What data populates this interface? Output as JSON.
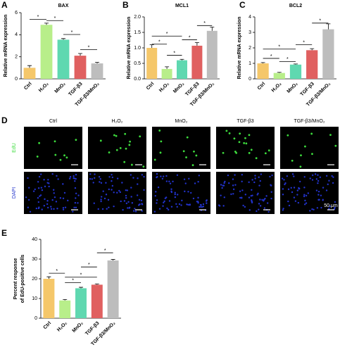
{
  "chart_data": [
    {
      "type": "bar",
      "label": "A",
      "title": "BAX",
      "ylabel": "Relative mRNA expression",
      "categories": [
        "Ctrl",
        "H₂O₂",
        "MnO₂",
        "TGF-β3",
        "TGF-β3/MnO₂"
      ],
      "values": [
        1.0,
        4.9,
        3.55,
        2.1,
        1.4
      ],
      "errors": [
        0.2,
        0.15,
        0.1,
        0.2,
        0.1
      ],
      "colors": [
        "#f5c76a",
        "#b8ee8a",
        "#5fd8b0",
        "#e06060",
        "#bdbdbd"
      ],
      "ylim": [
        0,
        6
      ],
      "yticks": [
        0,
        2,
        4,
        6
      ],
      "annotations": [
        "*",
        "*",
        "*",
        "*"
      ]
    },
    {
      "type": "bar",
      "label": "B",
      "title": "MCL1",
      "ylabel": "Relative mRNA expression",
      "categories": [
        "Ctrl",
        "H₂O₂",
        "MnO₂",
        "TGF-β3",
        "TGF-β3/MnO₂"
      ],
      "values": [
        1.0,
        0.32,
        0.6,
        1.07,
        1.55
      ],
      "errors": [
        0.1,
        0.07,
        0.03,
        0.1,
        0.12
      ],
      "colors": [
        "#f5c76a",
        "#b8ee8a",
        "#5fd8b0",
        "#e06060",
        "#bdbdbd"
      ],
      "ylim": [
        0,
        2
      ],
      "yticks": [
        {
          "value": 0,
          "label": "0.0"
        },
        0.5,
        {
          "value": 1,
          "label": "1.0"
        },
        1.5,
        {
          "value": 2,
          "label": "2.0"
        }
      ],
      "annotations": [
        "*",
        "*",
        "*",
        "*",
        "*"
      ]
    },
    {
      "type": "bar",
      "label": "C",
      "title": "BCL2",
      "ylabel": "Relative mRNA expression",
      "categories": [
        "Ctrl",
        "H₂O₂",
        "MnO₂",
        "TGF-β3",
        "TGF-β3/MnO₂"
      ],
      "values": [
        1.0,
        0.38,
        0.92,
        1.85,
        3.2
      ],
      "errors": [
        0.05,
        0.04,
        0.04,
        0.1,
        0.35
      ],
      "colors": [
        "#f5c76a",
        "#b8ee8a",
        "#5fd8b0",
        "#e06060",
        "#bdbdbd"
      ],
      "ylim": [
        0,
        4
      ],
      "yticks": [
        0,
        1,
        2,
        3,
        4
      ],
      "annotations": [
        "*",
        "*",
        "*",
        "*",
        "*"
      ]
    },
    {
      "type": "bar",
      "label": "E",
      "ylabel": [
        "Percent response",
        "of EdU-positive cells"
      ],
      "categories": [
        "Ctrl",
        "H₂O₂",
        "MnO₂",
        "TGF-β3",
        "TGF-β3/MnO₂"
      ],
      "values": [
        20,
        9,
        15.2,
        17,
        29.3
      ],
      "errors": [
        1,
        0.5,
        0.5,
        0.4,
        0.5
      ],
      "colors": [
        "#f5c76a",
        "#b8ee8a",
        "#5fd8b0",
        "#e06060",
        "#bdbdbd"
      ],
      "ylim": [
        0,
        40
      ],
      "yticks": [
        0,
        10,
        20,
        30,
        40
      ],
      "annotations": [
        "*",
        "*",
        "*",
        "*",
        "*"
      ]
    }
  ],
  "panel_d": {
    "label": "D",
    "columns": [
      "Ctrl",
      "H₂O₂",
      "MnO₂",
      "TGF-β3",
      "TGF-β3/MnO₂"
    ],
    "rows": [
      "EdU",
      "DAPI"
    ],
    "scale_bar": "50 μm"
  }
}
